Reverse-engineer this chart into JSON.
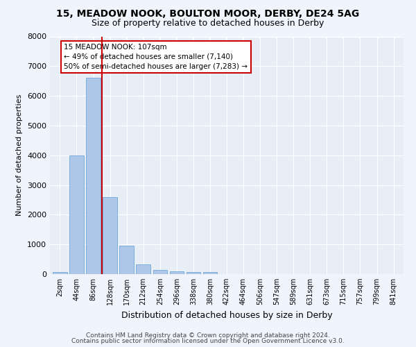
{
  "title1": "15, MEADOW NOOK, BOULTON MOOR, DERBY, DE24 5AG",
  "title2": "Size of property relative to detached houses in Derby",
  "xlabel": "Distribution of detached houses by size in Derby",
  "ylabel": "Number of detached properties",
  "bar_color": "#aec6e8",
  "bar_edge_color": "#5a9fd4",
  "background_color": "#e8eef6",
  "grid_color": "#ffffff",
  "fig_bg_color": "#f0f4fc",
  "bin_labels": [
    "2sqm",
    "44sqm",
    "86sqm",
    "128sqm",
    "170sqm",
    "212sqm",
    "254sqm",
    "296sqm",
    "338sqm",
    "380sqm",
    "422sqm",
    "464sqm",
    "506sqm",
    "547sqm",
    "589sqm",
    "631sqm",
    "673sqm",
    "715sqm",
    "757sqm",
    "799sqm",
    "841sqm"
  ],
  "bar_values": [
    75,
    4000,
    6600,
    2600,
    950,
    320,
    140,
    100,
    75,
    75,
    0,
    0,
    0,
    0,
    0,
    0,
    0,
    0,
    0,
    0,
    0
  ],
  "ylim": [
    0,
    8000
  ],
  "yticks": [
    0,
    1000,
    2000,
    3000,
    4000,
    5000,
    6000,
    7000,
    8000
  ],
  "property_line_x": 2.5,
  "property_line_color": "#cc0000",
  "annotation_title": "15 MEADOW NOOK: 107sqm",
  "annotation_line1": "← 49% of detached houses are smaller (7,140)",
  "annotation_line2": "50% of semi-detached houses are larger (7,283) →",
  "annotation_box_color": "#cc0000",
  "footer1": "Contains HM Land Registry data © Crown copyright and database right 2024.",
  "footer2": "Contains public sector information licensed under the Open Government Licence v3.0."
}
